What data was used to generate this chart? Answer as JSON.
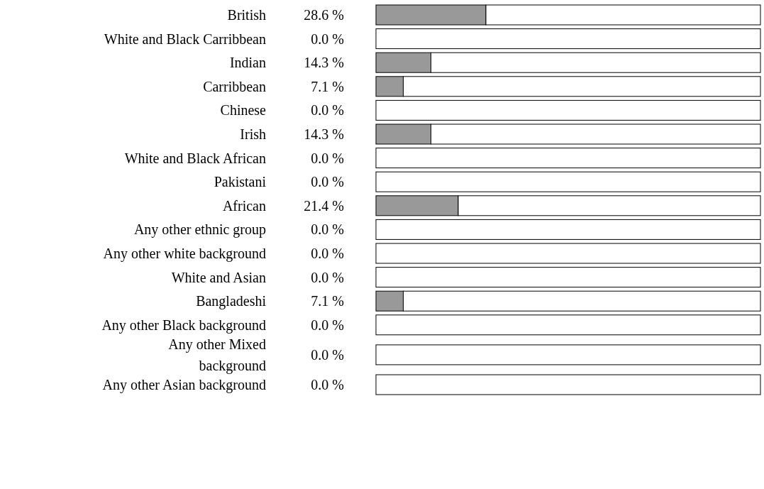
{
  "chart_data": {
    "type": "bar",
    "orientation": "horizontal",
    "stacked": true,
    "categories": [
      "British",
      "White and Black Carribbean",
      "Indian",
      "Carribbean",
      "Chinese",
      "Irish",
      "White and Black African",
      "Pakistani",
      "African",
      "Any other ethnic group",
      "Any other white background",
      "White and Asian",
      "Bangladeshi",
      "Any other Black background",
      "Any other Mixed\nbackground",
      "Any other Asian background"
    ],
    "series": [
      {
        "color": "#999999",
        "values": [
          28.6,
          0.0,
          14.3,
          7.1,
          0.0,
          14.3,
          0.0,
          0.0,
          21.4,
          0.0,
          0.0,
          0.0,
          7.1,
          0.0,
          0.0,
          0.0
        ],
        "value_labels": [
          "28.6 %",
          "0.0 %",
          "14.3 %",
          "7.1 %",
          "0.0 %",
          "14.3 %",
          "0.0 %",
          "0.0 %",
          "21.4 %",
          "0.0 %",
          "0.0 %",
          "0.0 %",
          "7.1 %",
          "0.0 %",
          "0.0 %",
          "0.0 %"
        ]
      },
      {
        "color": "#ffffff",
        "values": [
          71.4,
          100,
          85.7,
          92.9,
          100,
          85.7,
          100,
          100,
          78.6,
          100,
          100,
          100,
          92.9,
          100,
          100,
          100
        ]
      }
    ],
    "xlim": [
      0,
      100
    ]
  }
}
